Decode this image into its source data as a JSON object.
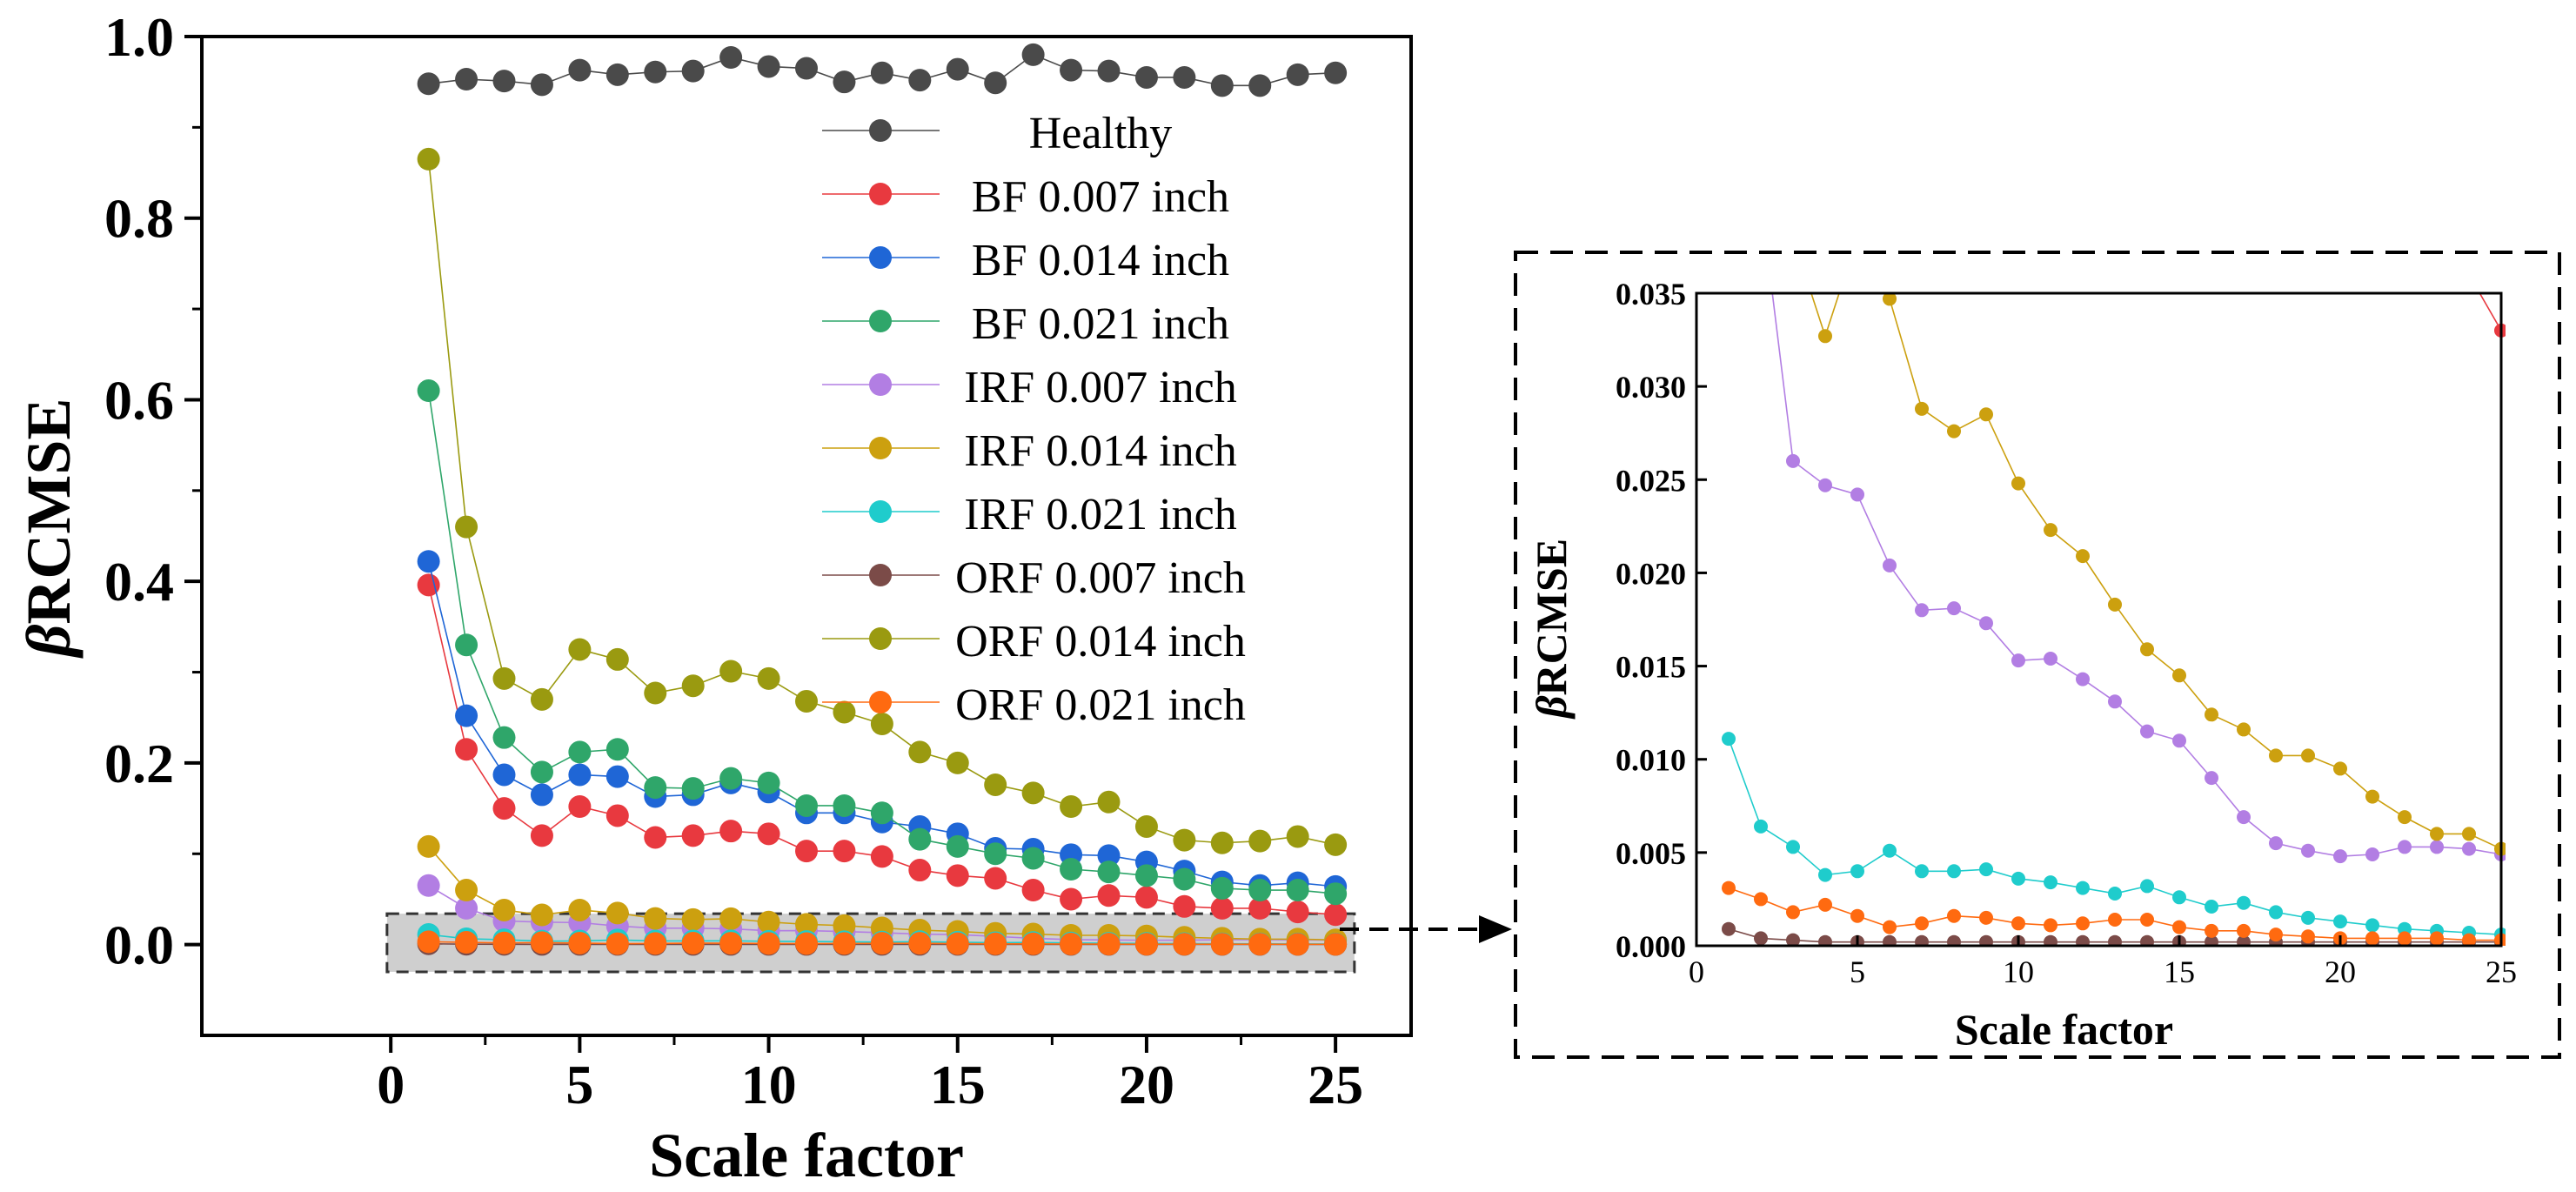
{
  "chart_data": [
    {
      "type": "line",
      "xlabel": "Scale factor",
      "ylabel": "βRCMSE",
      "ylabel_parts": [
        "β",
        "RCMSE"
      ],
      "xlim": [
        -5,
        27
      ],
      "ylim": [
        -0.1,
        1.0
      ],
      "xticks": [
        0,
        5,
        10,
        15,
        20,
        25
      ],
      "yticks": [
        0.0,
        0.2,
        0.4,
        0.6,
        0.8,
        1.0
      ],
      "xtick_labels": [
        "0",
        "5",
        "10",
        "15",
        "20",
        "25"
      ],
      "ytick_labels": [
        "0.0",
        "0.2",
        "0.4",
        "0.6",
        "0.8",
        "1.0"
      ],
      "legend_position": "top-right",
      "x": [
        1,
        2,
        3,
        4,
        5,
        6,
        7,
        8,
        9,
        10,
        11,
        12,
        13,
        14,
        15,
        16,
        17,
        18,
        19,
        20,
        21,
        22,
        23,
        24,
        25
      ],
      "series": [
        {
          "name": "Healthy",
          "color": "#4a4a4a",
          "values": [
            0.948,
            0.953,
            0.951,
            0.947,
            0.963,
            0.958,
            0.961,
            0.962,
            0.977,
            0.967,
            0.965,
            0.95,
            0.96,
            0.952,
            0.964,
            0.949,
            0.98,
            0.963,
            0.962,
            0.955,
            0.955,
            0.946,
            0.946,
            0.958,
            0.96
          ]
        },
        {
          "name": "BF 0.007 inch",
          "color": "#e8393f",
          "values": [
            0.396,
            0.215,
            0.15,
            0.12,
            0.152,
            0.142,
            0.118,
            0.12,
            0.125,
            0.122,
            0.103,
            0.103,
            0.097,
            0.082,
            0.076,
            0.073,
            0.06,
            0.05,
            0.054,
            0.052,
            0.042,
            0.04,
            0.04,
            0.036,
            0.033
          ]
        },
        {
          "name": "BF 0.014 inch",
          "color": "#1f66d6",
          "values": [
            0.422,
            0.252,
            0.187,
            0.165,
            0.187,
            0.185,
            0.163,
            0.165,
            0.178,
            0.168,
            0.145,
            0.145,
            0.135,
            0.13,
            0.122,
            0.106,
            0.105,
            0.099,
            0.098,
            0.091,
            0.081,
            0.069,
            0.065,
            0.068,
            0.064
          ]
        },
        {
          "name": "BF 0.021 inch",
          "color": "#2fa66a",
          "values": [
            0.61,
            0.33,
            0.228,
            0.19,
            0.212,
            0.215,
            0.173,
            0.172,
            0.183,
            0.178,
            0.153,
            0.153,
            0.145,
            0.116,
            0.108,
            0.1,
            0.095,
            0.083,
            0.08,
            0.076,
            0.072,
            0.062,
            0.06,
            0.06,
            0.056
          ]
        },
        {
          "name": "IRF 0.007 inch",
          "color": "#b27ee3",
          "values": [
            0.065,
            0.04,
            0.026,
            0.0247,
            0.0242,
            0.0204,
            0.018,
            0.0181,
            0.0173,
            0.0153,
            0.0154,
            0.0143,
            0.0131,
            0.0115,
            0.011,
            0.009,
            0.0069,
            0.0055,
            0.0051,
            0.0048,
            0.0049,
            0.0053,
            0.0053,
            0.0052,
            0.0049
          ]
        },
        {
          "name": "IRF 0.014 inch",
          "color": "#cca00f",
          "values": [
            0.108,
            0.06,
            0.038,
            0.0327,
            0.038,
            0.0347,
            0.0288,
            0.0276,
            0.0285,
            0.0248,
            0.0223,
            0.0209,
            0.0183,
            0.0159,
            0.0145,
            0.0124,
            0.0116,
            0.0102,
            0.0102,
            0.0095,
            0.008,
            0.0069,
            0.006,
            0.006,
            0.0052
          ]
        },
        {
          "name": "IRF 0.021 inch",
          "color": "#1fcccc",
          "values": [
            0.0111,
            0.0064,
            0.0053,
            0.0038,
            0.004,
            0.0051,
            0.004,
            0.004,
            0.0041,
            0.0036,
            0.0034,
            0.0031,
            0.0028,
            0.0032,
            0.0026,
            0.0021,
            0.0023,
            0.0018,
            0.0015,
            0.0013,
            0.0011,
            0.0009,
            0.0008,
            0.0007,
            0.0006
          ]
        },
        {
          "name": "ORF 0.007 inch",
          "color": "#7b4b48",
          "values": [
            0.0009,
            0.0004,
            0.0003,
            0.0002,
            0.0002,
            0.0002,
            0.0002,
            0.0002,
            0.0002,
            0.0002,
            0.0002,
            0.0002,
            0.0002,
            0.0002,
            0.0002,
            0.0002,
            0.0002,
            0.0002,
            0.0002,
            0.0002,
            0.0002,
            0.0002,
            0.0002,
            0.0002,
            0.0002
          ]
        },
        {
          "name": "ORF 0.014 inch",
          "color": "#9a9a10",
          "values": [
            0.865,
            0.46,
            0.293,
            0.27,
            0.325,
            0.314,
            0.277,
            0.285,
            0.301,
            0.293,
            0.268,
            0.256,
            0.243,
            0.212,
            0.2,
            0.176,
            0.167,
            0.152,
            0.157,
            0.13,
            0.115,
            0.112,
            0.114,
            0.119,
            0.11
          ]
        },
        {
          "name": "ORF 0.021 inch",
          "color": "#ff6a10",
          "values": [
            0.0031,
            0.0025,
            0.0018,
            0.0022,
            0.0016,
            0.001,
            0.0012,
            0.0016,
            0.0015,
            0.0012,
            0.0011,
            0.0012,
            0.0014,
            0.0014,
            0.001,
            0.0008,
            0.0008,
            0.0006,
            0.0005,
            0.0004,
            0.0004,
            0.0004,
            0.0004,
            0.0003,
            0.0003
          ]
        }
      ]
    },
    {
      "type": "line",
      "title": "",
      "xlabel": "Scale factor",
      "ylabel": "βRCMSE",
      "ylabel_parts": [
        "β",
        "RCMSE"
      ],
      "xlim": [
        0,
        25
      ],
      "ylim": [
        0,
        0.035
      ],
      "xticks": [
        0,
        5,
        10,
        15,
        20,
        25
      ],
      "yticks": [
        0,
        0.005,
        0.01,
        0.015,
        0.02,
        0.025,
        0.03,
        0.035
      ],
      "xtick_labels": [
        "0",
        "5",
        "10",
        "15",
        "20",
        "25"
      ],
      "ytick_labels": [
        "0.000",
        "0.005",
        "0.010",
        "0.015",
        "0.020",
        "0.025",
        "0.030",
        "0.035"
      ],
      "note": "zoomed view of lower region of left chart",
      "series_ref": "same series as chart 0"
    }
  ]
}
